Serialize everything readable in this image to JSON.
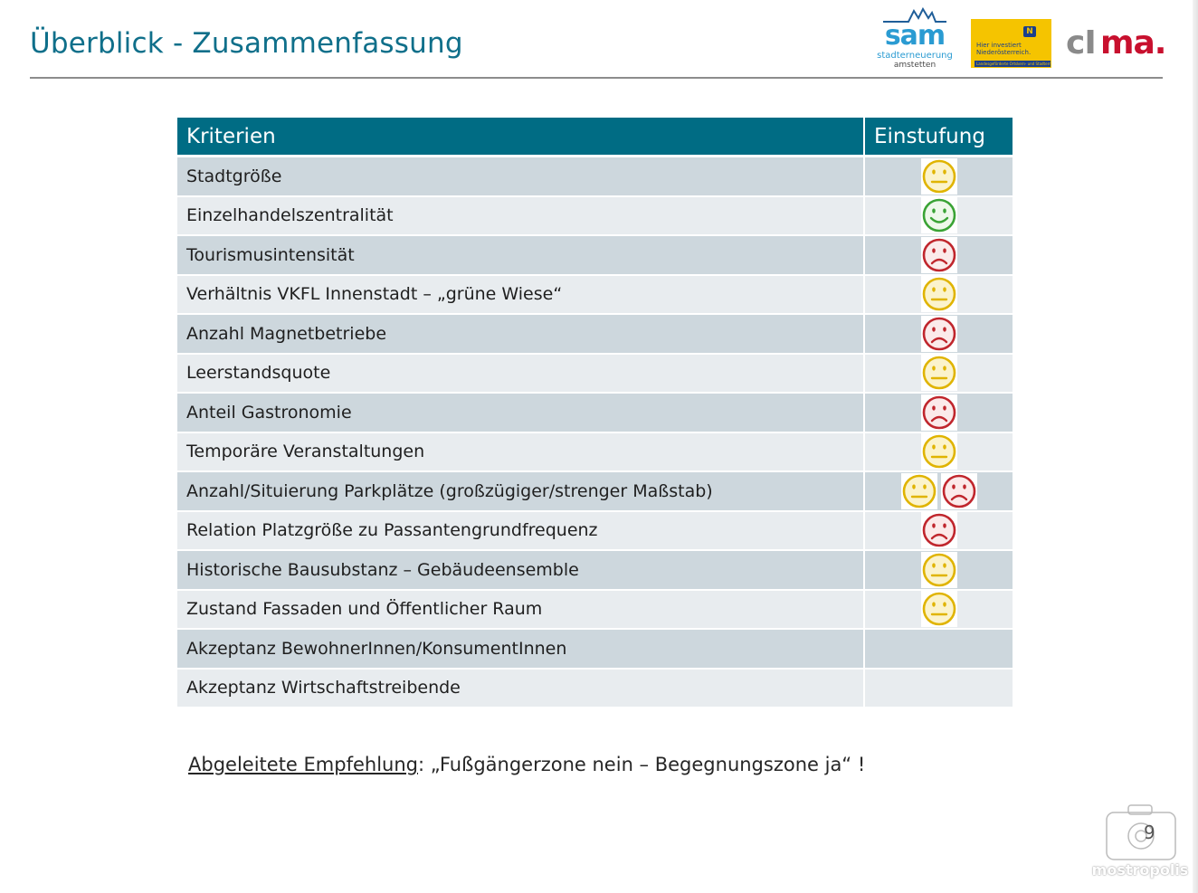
{
  "slide": {
    "title": "Überblick - Zusammenfassung",
    "page_number": "9"
  },
  "logos": {
    "sam": {
      "word": "sam",
      "sub1": "stadterneuerung",
      "sub2": "amstetten"
    },
    "noe": {
      "line1": "Hier investiert",
      "line2": "Niederösterreich.",
      "badge": "N",
      "bar": "Landesgeförderte Ortskern- und Stadterneuerung"
    },
    "cima": {
      "part1": "cI",
      "part2": "ma."
    }
  },
  "table": {
    "headers": {
      "criteria": "Kriterien",
      "rating": "Einstufung"
    },
    "rows": [
      {
        "criterion": "Stadtgröße",
        "ratings": [
          "neutral"
        ]
      },
      {
        "criterion": "Einzelhandelszentralität",
        "ratings": [
          "positive"
        ]
      },
      {
        "criterion": "Tourismusintensität",
        "ratings": [
          "negative"
        ]
      },
      {
        "criterion": "Verhältnis VKFL Innenstadt – „grüne Wiese“",
        "ratings": [
          "neutral"
        ]
      },
      {
        "criterion": "Anzahl Magnetbetriebe",
        "ratings": [
          "negative"
        ]
      },
      {
        "criterion": "Leerstandsquote",
        "ratings": [
          "neutral"
        ]
      },
      {
        "criterion": "Anteil Gastronomie",
        "ratings": [
          "negative"
        ]
      },
      {
        "criterion": "Temporäre Veranstaltungen",
        "ratings": [
          "neutral"
        ]
      },
      {
        "criterion": "Anzahl/Situierung Parkplätze (großzügiger/strenger Maßstab)",
        "ratings": [
          "neutral",
          "negative"
        ]
      },
      {
        "criterion": "Relation Platzgröße zu Passantengrundfrequenz",
        "ratings": [
          "negative"
        ]
      },
      {
        "criterion": "Historische Bausubstanz –  Gebäudeensemble",
        "ratings": [
          "neutral"
        ]
      },
      {
        "criterion": "Zustand Fassaden und Öffentlicher Raum",
        "ratings": [
          "neutral"
        ]
      },
      {
        "criterion": "Akzeptanz BewohnerInnen/KonsumentInnen",
        "ratings": []
      },
      {
        "criterion": "Akzeptanz Wirtschaftstreibende",
        "ratings": []
      }
    ]
  },
  "recommendation": {
    "label": "Abgeleitete Empfehlung",
    "text": ": „Fußgängerzone nein –  Begegnungszone ja“ !"
  },
  "watermark": {
    "text": "mostropolis"
  },
  "colors": {
    "title": "#0f6f8a",
    "header_bg": "#006c84",
    "row_odd": "#cdd7dd",
    "row_even": "#e8ecef",
    "positive": "#3aa335",
    "neutral": "#e0b400",
    "negative": "#c0262d"
  },
  "icons": {
    "positive": "smiley-happy-icon",
    "neutral": "smiley-neutral-icon",
    "negative": "smiley-sad-icon"
  }
}
